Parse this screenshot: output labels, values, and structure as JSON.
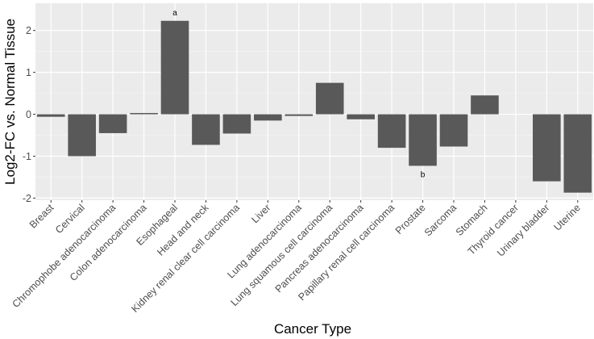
{
  "chart_data": {
    "type": "bar",
    "title": "",
    "xlabel": "Cancer Type",
    "ylabel": "Log2-FC vs. Normal Tissue",
    "ylim": [
      -2.05,
      2.65
    ],
    "yticks": [
      -2,
      -1,
      0,
      1,
      2
    ],
    "grid": true,
    "categories": [
      "Breast",
      "Cervical",
      "Chromophobe adenocarcinoma",
      "Colon adenocarcinoma",
      "Esophageal",
      "Head and neck",
      "Kidney renal clear cell carcinoma",
      "Liver",
      "Lung adenocarcinoma",
      "Lung squamous cell carcinoma",
      "Pancreas adenocarcinoma",
      "Papillary renal cell carcinoma",
      "Prostate",
      "Sarcoma",
      "Stomach",
      "Thyroid cancer",
      "Urinary bladder",
      "Uterine"
    ],
    "values": [
      -0.06,
      -1.0,
      -0.45,
      0.03,
      2.23,
      -0.73,
      -0.46,
      -0.15,
      -0.04,
      0.75,
      -0.12,
      -0.8,
      -1.23,
      -0.77,
      0.45,
      0,
      -1.6,
      -1.87
    ],
    "annotations": [
      {
        "category": "Esophageal",
        "text": "a",
        "position": "above"
      },
      {
        "category": "Prostate",
        "text": "b",
        "position": "below"
      }
    ],
    "colors": {
      "bar": "#595959",
      "panel": "#ebebeb",
      "grid_major": "#ffffff",
      "grid_minor": "#f5f5f5",
      "text": "#4d4d4d"
    }
  }
}
